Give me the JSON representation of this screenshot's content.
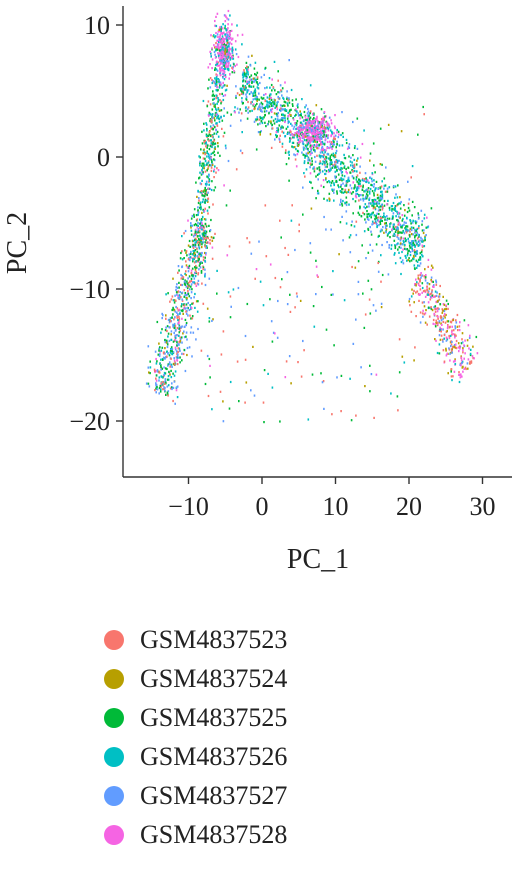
{
  "chart_data": {
    "type": "scatter",
    "xlabel": "PC_1",
    "ylabel": "PC_2",
    "xlim": [
      -17,
      32
    ],
    "ylim": [
      -24,
      11
    ],
    "xticks": [
      -10,
      0,
      10,
      20,
      30
    ],
    "yticks": [
      -20,
      -10,
      0,
      10
    ],
    "xtick_labels": [
      "−10",
      "0",
      "10",
      "20",
      "30"
    ],
    "ytick_labels": [
      "−20",
      "−10",
      "0",
      "10"
    ],
    "grid": false,
    "legend_position": "bottom",
    "series": [
      {
        "name": "GSM4837523",
        "color": "#F8766D"
      },
      {
        "name": "GSM4837524",
        "color": "#B79F00"
      },
      {
        "name": "GSM4837525",
        "color": "#00BA38"
      },
      {
        "name": "GSM4837526",
        "color": "#00BFC4"
      },
      {
        "name": "GSM4837527",
        "color": "#619CFF"
      },
      {
        "name": "GSM4837528",
        "color": "#F564E3"
      }
    ],
    "clusters": [
      {
        "shape": "band",
        "from": [
          -14,
          -18
        ],
        "to": [
          -8,
          -5
        ],
        "spread": 1.0,
        "weights": [
          0.2,
          0.05,
          0.25,
          0.1,
          0.35,
          0.05
        ]
      },
      {
        "shape": "band",
        "from": [
          -9,
          -8
        ],
        "to": [
          -6,
          6
        ],
        "spread": 0.6,
        "weights": [
          0.2,
          0.05,
          0.35,
          0.25,
          0.1,
          0.05
        ]
      },
      {
        "shape": "blob",
        "center": [
          -5.3,
          8
        ],
        "radius": [
          1.2,
          1.8
        ],
        "weights": [
          0.02,
          0.02,
          0.1,
          0.2,
          0.16,
          0.5
        ]
      },
      {
        "shape": "band",
        "from": [
          -3,
          6
        ],
        "to": [
          22,
          -7
        ],
        "spread": 1.2,
        "weights": [
          0.05,
          0.05,
          0.3,
          0.3,
          0.25,
          0.05
        ]
      },
      {
        "shape": "blob",
        "center": [
          7,
          2
        ],
        "radius": [
          2.0,
          1.0
        ],
        "weights": [
          0.02,
          0.02,
          0.1,
          0.1,
          0.16,
          0.6
        ]
      },
      {
        "shape": "band",
        "from": [
          21,
          -9
        ],
        "to": [
          28,
          -16
        ],
        "spread": 0.9,
        "weights": [
          0.25,
          0.2,
          0.05,
          0.05,
          0.2,
          0.25
        ]
      },
      {
        "shape": "scatter",
        "xrange": [
          -9,
          22
        ],
        "yrange": [
          -20,
          4
        ],
        "weights": [
          0.3,
          0.05,
          0.25,
          0.1,
          0.25,
          0.05
        ]
      }
    ]
  }
}
